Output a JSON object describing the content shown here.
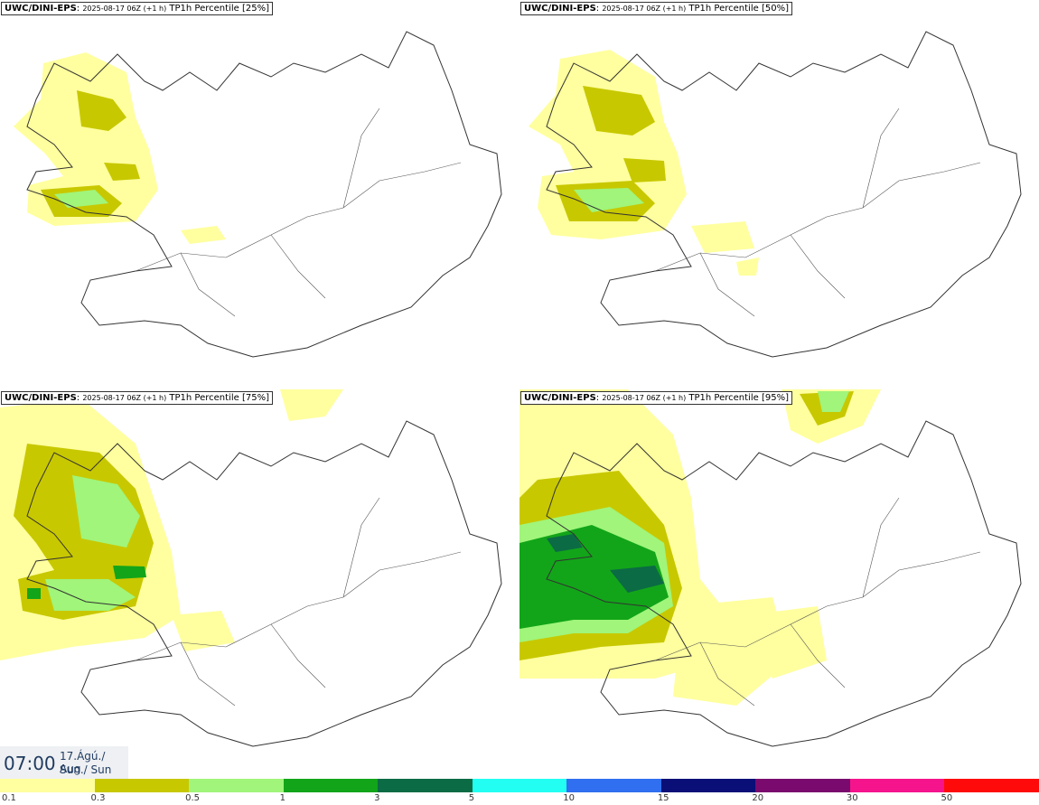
{
  "panels": [
    {
      "model": "UWC/DINI-EPS",
      "run": "2025-08-17 06Z (+1 h)",
      "product": "TP1h Percentile [25%]"
    },
    {
      "model": "UWC/DINI-EPS",
      "run": "2025-08-17 06Z (+1 h)",
      "product": "TP1h Percentile [50%]"
    },
    {
      "model": "UWC/DINI-EPS",
      "run": "2025-08-17 06Z (+1 h)",
      "product": "TP1h Percentile [75%]"
    },
    {
      "model": "UWC/DINI-EPS",
      "run": "2025-08-17 06Z (+1 h)",
      "product": "TP1h Percentile [95%]"
    }
  ],
  "valid_time": {
    "clock": "07:00",
    "date": "17.Ágú./ Aug",
    "day": "Sun./ Sun"
  },
  "legend": {
    "ticks": [
      "0.1",
      "0.3",
      "0.5",
      "1",
      "3",
      "5",
      "10",
      "15",
      "20",
      "30",
      "50"
    ],
    "colors": [
      "#ffff9f",
      "#c8c800",
      "#a0f57a",
      "#12a519",
      "#0b6b45",
      "#22fff2",
      "#2f6ff0",
      "#0a0f77",
      "#7a0a6e",
      "#f5148c",
      "#ff0a0a"
    ]
  }
}
